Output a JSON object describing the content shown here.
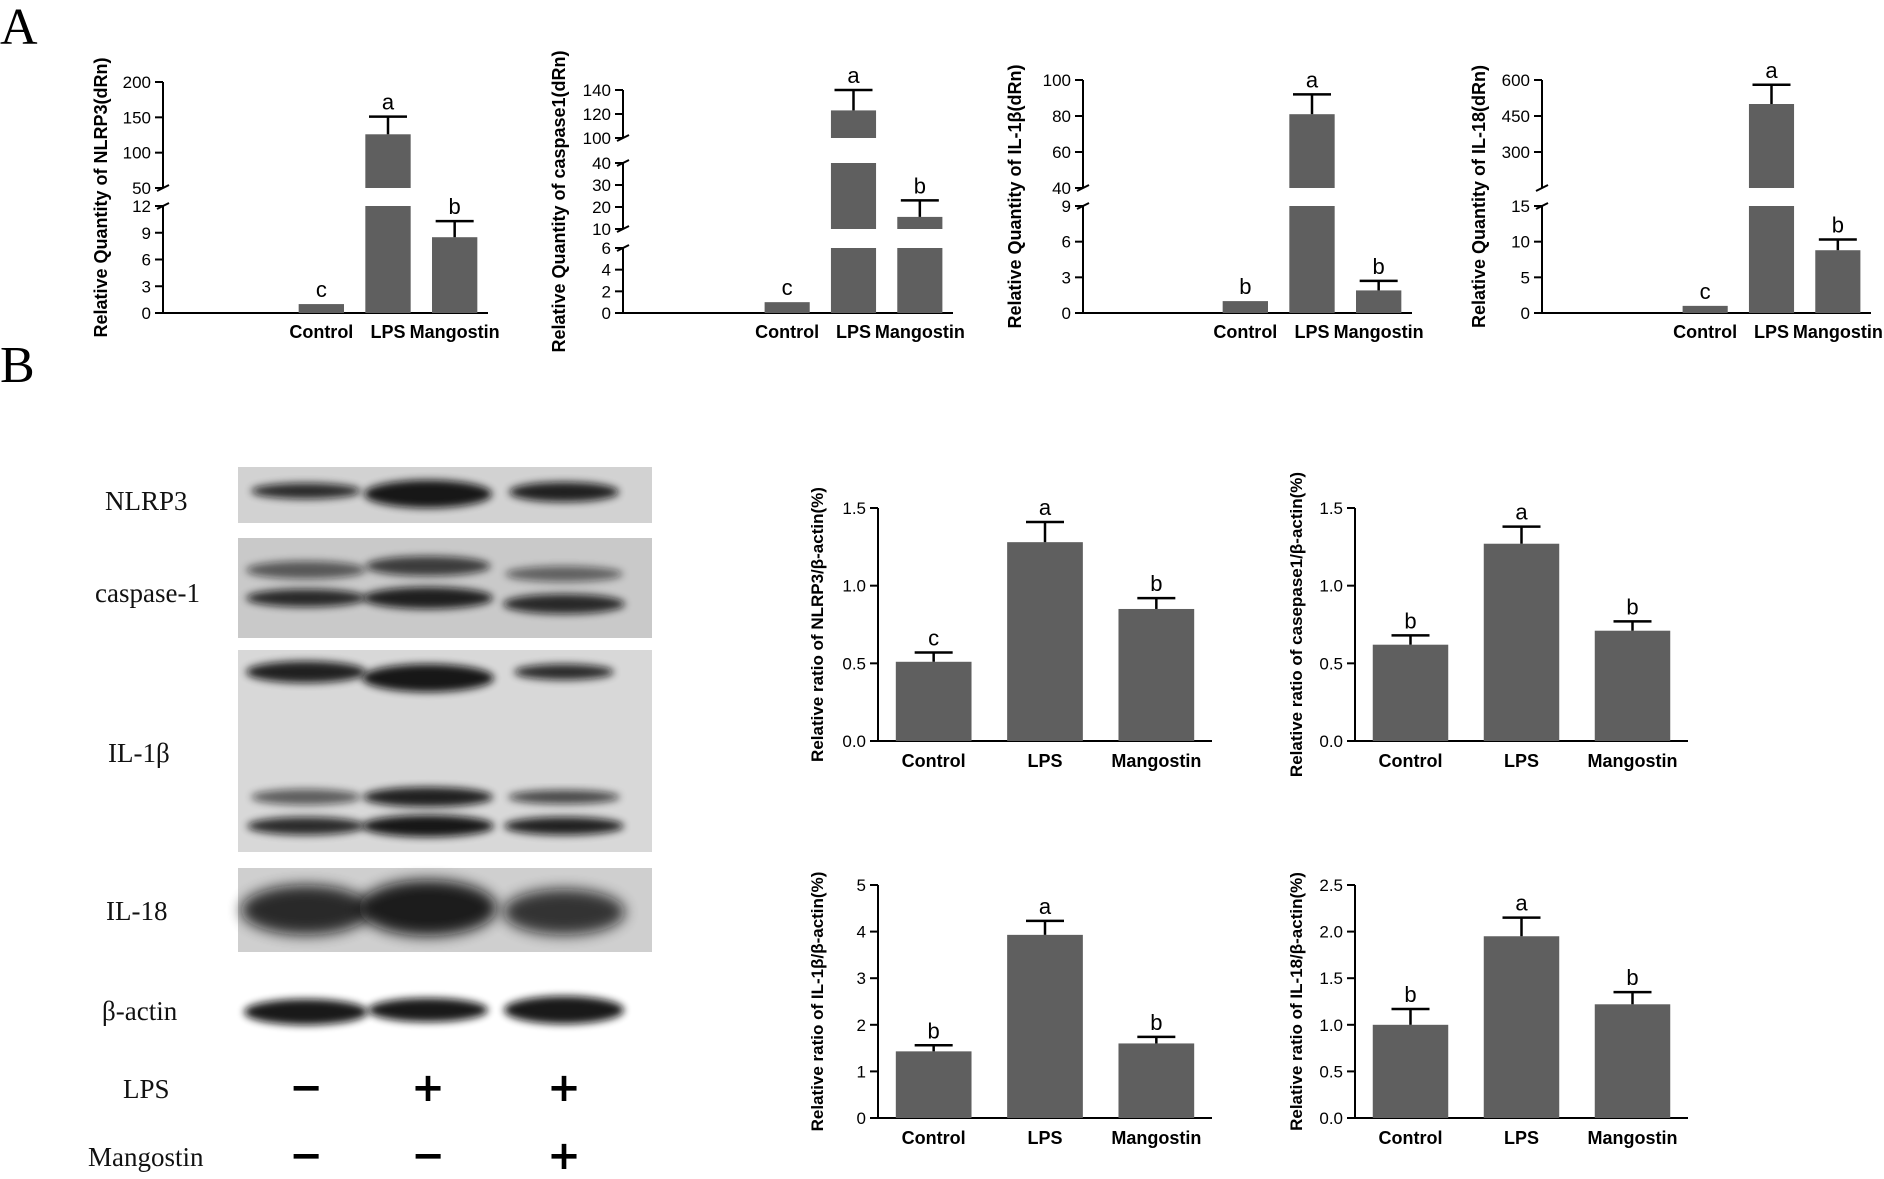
{
  "panel_labels": {
    "a": "A",
    "b": "B"
  },
  "colors": {
    "bar": "#5f5f5f",
    "axis": "#000000"
  },
  "chart_data": [
    {
      "id": "nlrp3_qpcr",
      "type": "bar",
      "ylabel": "Relative Quantity of NLRP3(dRn)",
      "categories": [
        "Control",
        "LPS",
        "Mangostin"
      ],
      "values": [
        1,
        126,
        8.5
      ],
      "errors": [
        0,
        25,
        1.8
      ],
      "letters": [
        "c",
        "a",
        "b"
      ],
      "broken_axis": true,
      "segments": [
        {
          "range": [
            0,
            12
          ],
          "ticks": [
            0,
            3,
            6,
            9,
            12
          ]
        },
        {
          "range": [
            50,
            200
          ],
          "ticks": [
            50,
            100,
            150,
            200
          ]
        }
      ]
    },
    {
      "id": "caspase1_qpcr",
      "type": "bar",
      "ylabel": "Relative Quantity of caspase1(dRn)",
      "categories": [
        "Control",
        "LPS",
        "Mangostin"
      ],
      "values": [
        1,
        123,
        15.5
      ],
      "errors": [
        0,
        19,
        7.5
      ],
      "letters": [
        "c",
        "a",
        "b"
      ],
      "broken_axis": true,
      "segments": [
        {
          "range": [
            0,
            6
          ],
          "ticks": [
            0,
            2,
            4,
            6
          ]
        },
        {
          "range": [
            10,
            40
          ],
          "ticks": [
            10,
            20,
            30,
            40
          ]
        },
        {
          "range": [
            100,
            140
          ],
          "ticks": [
            100,
            120,
            140
          ]
        }
      ]
    },
    {
      "id": "il1b_qpcr",
      "type": "bar",
      "ylabel": "Relative Quantity of IL-1β(dRn)",
      "categories": [
        "Control",
        "LPS",
        "Mangostin"
      ],
      "values": [
        1,
        81,
        1.9
      ],
      "errors": [
        0,
        11,
        0.8
      ],
      "letters": [
        "b",
        "a",
        "b"
      ],
      "broken_axis": true,
      "segments": [
        {
          "range": [
            0,
            9
          ],
          "ticks": [
            0,
            3,
            6,
            9
          ]
        },
        {
          "range": [
            40,
            100
          ],
          "ticks": [
            40,
            60,
            80,
            100
          ]
        }
      ]
    },
    {
      "id": "il18_qpcr",
      "type": "bar",
      "ylabel": "Relative Quantity of IL-18(dRn)",
      "categories": [
        "Control",
        "LPS",
        "Mangostin"
      ],
      "values": [
        1,
        500,
        8.8
      ],
      "errors": [
        0,
        80,
        1.5
      ],
      "letters": [
        "c",
        "a",
        "b"
      ],
      "broken_axis": true,
      "segments": [
        {
          "range": [
            0,
            15
          ],
          "ticks": [
            0,
            5,
            10,
            15
          ]
        },
        {
          "range": [
            150,
            600
          ],
          "ticks": [
            300,
            450,
            600
          ]
        }
      ]
    },
    {
      "id": "nlrp3_wb",
      "type": "bar",
      "ylabel": "Relative ratio of NLRP3/β-actin(%)",
      "categories": [
        "Control",
        "LPS",
        "Mangostin"
      ],
      "values": [
        0.51,
        1.28,
        0.85
      ],
      "errors": [
        0.06,
        0.13,
        0.07
      ],
      "letters": [
        "c",
        "a",
        "b"
      ],
      "ylim": [
        0,
        1.5
      ],
      "yticks": [
        0,
        0.5,
        1.0,
        1.5
      ],
      "ytick_labels": [
        "0.0",
        "0.5",
        "1.0",
        "1.5"
      ]
    },
    {
      "id": "caspase1_wb",
      "type": "bar",
      "ylabel": "Relative ratio of casepase1/β-actin(%)",
      "categories": [
        "Control",
        "LPS",
        "Mangostin"
      ],
      "values": [
        0.62,
        1.27,
        0.71
      ],
      "errors": [
        0.06,
        0.11,
        0.06
      ],
      "letters": [
        "b",
        "a",
        "b"
      ],
      "ylim": [
        0,
        1.5
      ],
      "yticks": [
        0,
        0.5,
        1.0,
        1.5
      ],
      "ytick_labels": [
        "0.0",
        "0.5",
        "1.0",
        "1.5"
      ]
    },
    {
      "id": "il1b_wb",
      "type": "bar",
      "ylabel": "Relative ratio of IL-1β/β-actin(%)",
      "categories": [
        "Control",
        "LPS",
        "Mangostin"
      ],
      "values": [
        1.43,
        3.93,
        1.6
      ],
      "errors": [
        0.13,
        0.3,
        0.14
      ],
      "letters": [
        "b",
        "a",
        "b"
      ],
      "ylim": [
        0,
        5
      ],
      "yticks": [
        0,
        1,
        2,
        3,
        4,
        5
      ],
      "ytick_labels": [
        "0",
        "1",
        "2",
        "3",
        "4",
        "5"
      ]
    },
    {
      "id": "il18_wb",
      "type": "bar",
      "ylabel": "Relative ratio of IL-18/β-actin(%)",
      "categories": [
        "Control",
        "LPS",
        "Mangostin"
      ],
      "values": [
        1.0,
        1.95,
        1.22
      ],
      "errors": [
        0.17,
        0.2,
        0.13
      ],
      "letters": [
        "b",
        "a",
        "b"
      ],
      "ylim": [
        0,
        2.5
      ],
      "yticks": [
        0,
        0.5,
        1.0,
        1.5,
        2.0,
        2.5
      ],
      "ytick_labels": [
        "0.0",
        "0.5",
        "1.0",
        "1.5",
        "2.0",
        "2.5"
      ]
    }
  ],
  "western_blot": {
    "proteins": [
      "NLRP3",
      "caspase-1",
      "IL-1β",
      "IL-18",
      "β-actin"
    ],
    "treatments": [
      {
        "name": "LPS",
        "signs": [
          "−",
          "+",
          "+"
        ]
      },
      {
        "name": "Mangostin",
        "signs": [
          "−",
          "−",
          "+"
        ]
      }
    ]
  }
}
